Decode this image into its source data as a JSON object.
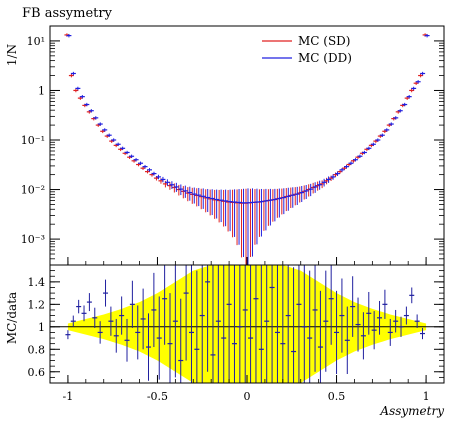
{
  "chart_data": {
    "type": "scatter",
    "title": "FB assymetry",
    "xlabel": "Assymetry",
    "xlim": [
      -1.1,
      1.1
    ],
    "xticks": [
      "-1",
      "-0.5",
      "0",
      "0.5",
      "1"
    ],
    "legend_position": "top-right",
    "top_panel": {
      "ylabel": "1/N",
      "yscale": "log",
      "ylim": [
        0.0003,
        20
      ],
      "yticks": [
        "10⁻³",
        "10⁻²",
        "10⁻¹",
        "1",
        "10¹"
      ],
      "series": [
        {
          "name": "MC (SD)",
          "color": "#e02020",
          "x": [
            -1.0,
            -0.975,
            -0.95,
            -0.925,
            -0.9,
            -0.875,
            -0.85,
            -0.825,
            -0.8,
            -0.775,
            -0.75,
            -0.725,
            -0.7,
            -0.675,
            -0.65,
            -0.625,
            -0.6,
            -0.575,
            -0.55,
            -0.525,
            -0.5,
            -0.475,
            -0.45,
            -0.425,
            -0.4,
            -0.375,
            -0.35,
            -0.325,
            -0.3,
            -0.275,
            -0.25,
            -0.225,
            -0.2,
            -0.175,
            -0.15,
            -0.125,
            -0.1,
            -0.075,
            -0.05,
            -0.025,
            0.0,
            0.025,
            0.05,
            0.075,
            0.1,
            0.125,
            0.15,
            0.175,
            0.2,
            0.225,
            0.25,
            0.275,
            0.3,
            0.325,
            0.35,
            0.375,
            0.4,
            0.425,
            0.45,
            0.475,
            0.5,
            0.525,
            0.55,
            0.575,
            0.6,
            0.625,
            0.65,
            0.675,
            0.7,
            0.725,
            0.75,
            0.775,
            0.8,
            0.825,
            0.85,
            0.875,
            0.9,
            0.925,
            0.95,
            0.975,
            1.0
          ],
          "y": [
            13.2,
            2.0,
            1.0,
            0.7,
            0.5,
            0.37,
            0.27,
            0.2,
            0.15,
            0.12,
            0.095,
            0.078,
            0.065,
            0.054,
            0.045,
            0.038,
            0.032,
            0.027,
            0.023,
            0.02,
            0.017,
            0.015,
            0.013,
            0.012,
            0.011,
            0.01,
            0.0092,
            0.0085,
            0.008,
            0.0076,
            0.0072,
            0.0068,
            0.0065,
            0.0062,
            0.006,
            0.0058,
            0.0056,
            0.0055,
            0.0054,
            0.0053,
            0.0053,
            0.0054,
            0.0055,
            0.0056,
            0.0058,
            0.006,
            0.0062,
            0.0065,
            0.0068,
            0.0072,
            0.0076,
            0.008,
            0.0085,
            0.0092,
            0.01,
            0.011,
            0.012,
            0.013,
            0.015,
            0.017,
            0.02,
            0.023,
            0.027,
            0.032,
            0.038,
            0.045,
            0.054,
            0.065,
            0.078,
            0.095,
            0.12,
            0.15,
            0.2,
            0.27,
            0.37,
            0.5,
            0.7,
            1.0,
            1.4,
            2.0,
            13.2
          ]
        },
        {
          "name": "MC (DD)",
          "color": "#2020e0",
          "x": [
            -1.0,
            -0.975,
            -0.95,
            -0.925,
            -0.9,
            -0.875,
            -0.85,
            -0.825,
            -0.8,
            -0.775,
            -0.75,
            -0.725,
            -0.7,
            -0.675,
            -0.65,
            -0.625,
            -0.6,
            -0.575,
            -0.55,
            -0.525,
            -0.5,
            -0.475,
            -0.45,
            -0.425,
            -0.4,
            -0.375,
            -0.35,
            -0.325,
            -0.3,
            -0.275,
            -0.25,
            -0.225,
            -0.2,
            -0.175,
            -0.15,
            -0.125,
            -0.1,
            -0.075,
            -0.05,
            -0.025,
            0.0,
            0.025,
            0.05,
            0.075,
            0.1,
            0.125,
            0.15,
            0.175,
            0.2,
            0.225,
            0.25,
            0.275,
            0.3,
            0.325,
            0.35,
            0.375,
            0.4,
            0.425,
            0.45,
            0.475,
            0.5,
            0.525,
            0.55,
            0.575,
            0.6,
            0.625,
            0.65,
            0.675,
            0.7,
            0.725,
            0.75,
            0.775,
            0.8,
            0.825,
            0.85,
            0.875,
            0.9,
            0.925,
            0.95,
            0.975,
            1.0
          ],
          "y": [
            12.8,
            2.2,
            1.1,
            0.75,
            0.52,
            0.39,
            0.28,
            0.21,
            0.16,
            0.125,
            0.1,
            0.082,
            0.068,
            0.056,
            0.047,
            0.04,
            0.034,
            0.029,
            0.025,
            0.021,
            0.018,
            0.016,
            0.014,
            0.0125,
            0.0113,
            0.0102,
            0.0094,
            0.0087,
            0.0081,
            0.0077,
            0.0073,
            0.0069,
            0.0066,
            0.0063,
            0.0061,
            0.0059,
            0.0057,
            0.0056,
            0.0055,
            0.0054,
            0.0054,
            0.0055,
            0.0056,
            0.0057,
            0.0059,
            0.0061,
            0.0063,
            0.0066,
            0.0069,
            0.0073,
            0.0077,
            0.0081,
            0.0087,
            0.0094,
            0.0102,
            0.0113,
            0.0125,
            0.014,
            0.016,
            0.018,
            0.021,
            0.025,
            0.029,
            0.034,
            0.04,
            0.047,
            0.056,
            0.068,
            0.082,
            0.1,
            0.125,
            0.16,
            0.21,
            0.28,
            0.39,
            0.52,
            0.75,
            1.1,
            1.5,
            2.2,
            12.8
          ]
        }
      ]
    },
    "bottom_panel": {
      "ylabel": "MC/data",
      "ylim": [
        0.5,
        1.55
      ],
      "yticks": [
        0.6,
        0.8,
        1,
        1.2,
        1.4
      ],
      "reference_line": 1,
      "band_color": "#ffff00",
      "band_halfwidth": {
        "x": [
          -1.0,
          -0.9,
          -0.8,
          -0.7,
          -0.6,
          -0.5,
          -0.4,
          -0.3,
          -0.2,
          -0.1,
          0.0,
          0.1,
          0.2,
          0.3,
          0.4,
          0.5,
          0.6,
          0.7,
          0.8,
          0.9,
          1.0
        ],
        "y": [
          0.03,
          0.07,
          0.11,
          0.16,
          0.22,
          0.3,
          0.4,
          0.5,
          0.56,
          0.6,
          0.62,
          0.6,
          0.56,
          0.5,
          0.4,
          0.3,
          0.22,
          0.16,
          0.11,
          0.07,
          0.03
        ]
      },
      "points": {
        "color": "#2020a0",
        "x": [
          -1.0,
          -0.97,
          -0.94,
          -0.91,
          -0.88,
          -0.85,
          -0.82,
          -0.79,
          -0.76,
          -0.73,
          -0.7,
          -0.67,
          -0.64,
          -0.61,
          -0.58,
          -0.55,
          -0.52,
          -0.49,
          -0.46,
          -0.43,
          -0.4,
          -0.37,
          -0.34,
          -0.31,
          -0.28,
          -0.25,
          -0.22,
          -0.19,
          -0.16,
          -0.13,
          -0.1,
          -0.07,
          -0.04,
          -0.01,
          0.02,
          0.05,
          0.08,
          0.11,
          0.14,
          0.17,
          0.2,
          0.23,
          0.26,
          0.29,
          0.32,
          0.35,
          0.38,
          0.41,
          0.44,
          0.47,
          0.5,
          0.53,
          0.56,
          0.59,
          0.62,
          0.65,
          0.68,
          0.71,
          0.74,
          0.77,
          0.8,
          0.83,
          0.86,
          0.89,
          0.92,
          0.95,
          0.98
        ],
        "y": [
          0.93,
          1.05,
          1.18,
          1.12,
          1.22,
          1.08,
          0.95,
          1.3,
          1.05,
          0.92,
          1.1,
          0.88,
          1.2,
          0.95,
          1.07,
          0.82,
          1.15,
          0.9,
          1.25,
          0.85,
          1.05,
          0.7,
          1.3,
          0.95,
          0.8,
          1.1,
          1.4,
          0.75,
          1.05,
          0.9,
          1.2,
          0.85,
          1.0,
          1.15,
          0.9,
          1.25,
          0.8,
          1.05,
          1.35,
          0.95,
          0.85,
          1.1,
          0.78,
          1.2,
          1.0,
          0.9,
          1.15,
          0.82,
          1.05,
          1.25,
          0.95,
          1.1,
          0.88,
          1.18,
          1.02,
          0.92,
          1.12,
          0.97,
          1.08,
          1.2,
          0.95,
          1.05,
          1.0,
          1.1,
          1.28,
          1.05,
          0.94
        ],
        "err": [
          0.04,
          0.05,
          0.06,
          0.07,
          0.08,
          0.09,
          0.1,
          0.12,
          0.13,
          0.15,
          0.17,
          0.19,
          0.21,
          0.24,
          0.27,
          0.3,
          0.33,
          0.37,
          0.41,
          0.45,
          0.5,
          0.55,
          0.6,
          0.65,
          0.7,
          0.75,
          0.8,
          0.85,
          0.9,
          0.95,
          1.0,
          1.0,
          1.0,
          1.0,
          1.0,
          1.0,
          1.0,
          1.0,
          0.95,
          0.9,
          0.85,
          0.8,
          0.75,
          0.7,
          0.65,
          0.6,
          0.55,
          0.5,
          0.45,
          0.41,
          0.37,
          0.33,
          0.3,
          0.27,
          0.24,
          0.21,
          0.19,
          0.17,
          0.15,
          0.13,
          0.12,
          0.1,
          0.09,
          0.08,
          0.07,
          0.06,
          0.05
        ]
      }
    }
  }
}
